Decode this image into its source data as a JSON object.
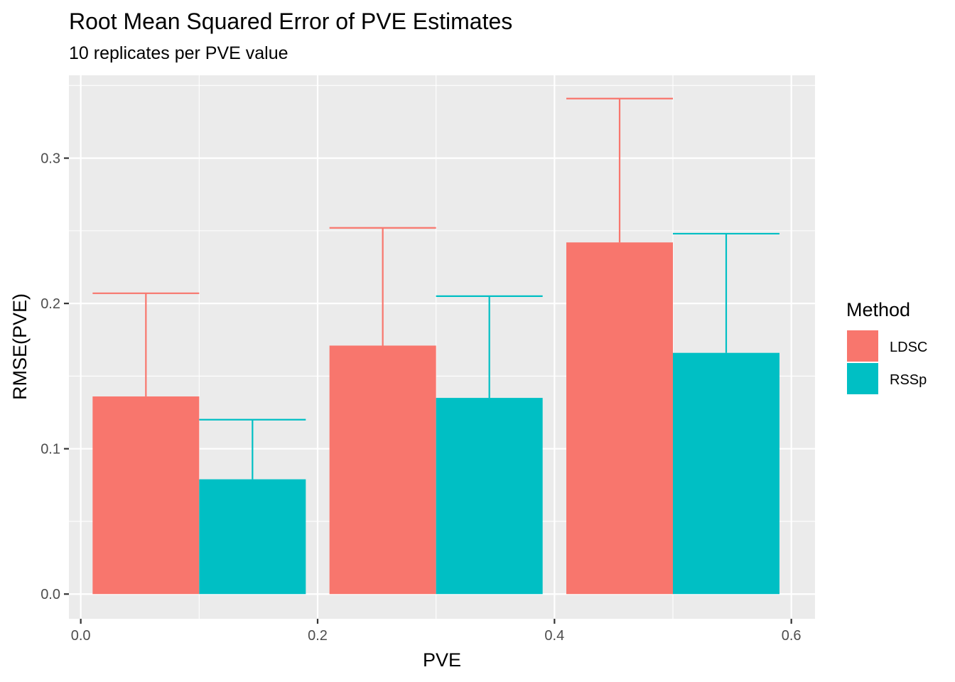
{
  "chart_data": {
    "type": "bar",
    "title": "Root Mean Squared Error of PVE Estimates",
    "subtitle": "10 replicates per PVE value",
    "xlabel": "PVE",
    "ylabel": "RMSE(PVE)",
    "xlim": [
      -0.01,
      0.62
    ],
    "ylim": [
      -0.017,
      0.357
    ],
    "x_ticks": [
      0.0,
      0.2,
      0.4,
      0.6
    ],
    "x_tick_labels": [
      "0.0",
      "0.2",
      "0.4",
      "0.6"
    ],
    "y_ticks": [
      0.0,
      0.1,
      0.2,
      0.3
    ],
    "y_tick_labels": [
      "0.0",
      "0.1",
      "0.2",
      "0.3"
    ],
    "grid": true,
    "legend": {
      "title": "Method",
      "position": "right"
    },
    "series": [
      {
        "name": "LDSC",
        "color": "#F8766D",
        "x_start": [
          0.01,
          0.21,
          0.41
        ],
        "x_end": [
          0.1,
          0.3,
          0.5
        ],
        "values": [
          0.136,
          0.171,
          0.242
        ],
        "error_upper": [
          0.207,
          0.252,
          0.341
        ]
      },
      {
        "name": "RSSp",
        "color": "#00BFC4",
        "x_start": [
          0.1,
          0.3,
          0.5
        ],
        "x_end": [
          0.19,
          0.39,
          0.59
        ],
        "values": [
          0.079,
          0.135,
          0.166
        ],
        "error_upper": [
          0.12,
          0.205,
          0.248
        ]
      }
    ]
  }
}
